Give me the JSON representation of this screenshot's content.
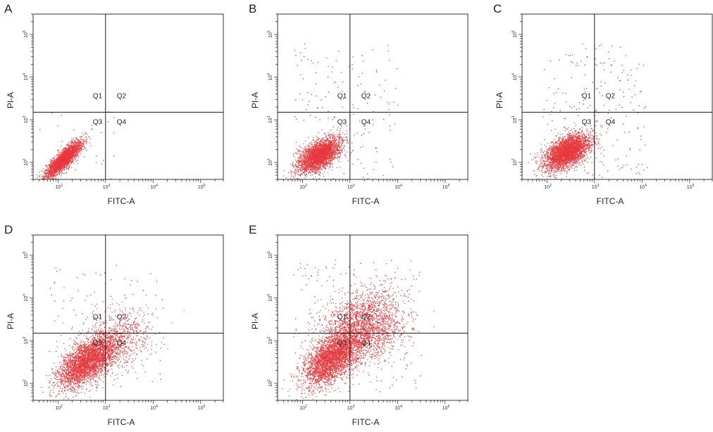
{
  "colors": {
    "points": "#e8383d",
    "axes": "#000000",
    "text": "#222222"
  },
  "chart_data": [
    {
      "type": "scatter",
      "panel_label": "A",
      "title": "",
      "xlabel": "FITC-A",
      "ylabel": "PI-A",
      "x_scale": "log",
      "y_scale": "log",
      "xlim": [
        30,
        300000
      ],
      "ylim": [
        40,
        300000
      ],
      "x_ticks": [
        {
          "base": "10",
          "exp": "2",
          "value": 100
        },
        {
          "base": "10",
          "exp": "3",
          "value": 1000
        },
        {
          "base": "10",
          "exp": "4",
          "value": 10000
        },
        {
          "base": "10",
          "exp": "5",
          "value": 100000
        }
      ],
      "y_ticks": [
        {
          "base": "10",
          "exp": "2",
          "value": 100
        },
        {
          "base": "10",
          "exp": "3",
          "value": 1000
        },
        {
          "base": "10",
          "exp": "4",
          "value": 10000
        },
        {
          "base": "10",
          "exp": "5",
          "value": 100000
        }
      ],
      "gates": {
        "x": 1000,
        "y": 1500
      },
      "quadrant_labels": [
        "Q1",
        "Q2",
        "Q3",
        "Q4"
      ],
      "populations": [
        {
          "n": 2600,
          "center": [
            130,
            120
          ],
          "spread": [
            0.19,
            0.21
          ],
          "correlation": 0.85
        }
      ],
      "sparse_events": {
        "n": 30,
        "x_range": [
          1.5,
          3.2
        ],
        "y_range": [
          1.4,
          3.2
        ]
      }
    },
    {
      "type": "scatter",
      "panel_label": "B",
      "title": "",
      "xlabel": "FITC-A",
      "ylabel": "PI-A",
      "x_scale": "log",
      "y_scale": "log",
      "xlim": [
        30,
        300000
      ],
      "ylim": [
        40,
        300000
      ],
      "x_ticks": [
        {
          "base": "10",
          "exp": "2",
          "value": 100
        },
        {
          "base": "10",
          "exp": "3",
          "value": 1000
        },
        {
          "base": "10",
          "exp": "4",
          "value": 10000
        },
        {
          "base": "10",
          "exp": "5",
          "value": 100000
        }
      ],
      "y_ticks": [
        {
          "base": "10",
          "exp": "2",
          "value": 100
        },
        {
          "base": "10",
          "exp": "3",
          "value": 1000
        },
        {
          "base": "10",
          "exp": "4",
          "value": 10000
        },
        {
          "base": "10",
          "exp": "5",
          "value": 100000
        }
      ],
      "gates": {
        "x": 1000,
        "y": 1500
      },
      "quadrant_labels": [
        "Q1",
        "Q2",
        "Q3",
        "Q4"
      ],
      "populations": [
        {
          "n": 3000,
          "center": [
            220,
            150
          ],
          "spread": [
            0.22,
            0.2
          ],
          "correlation": 0.55
        }
      ],
      "sparse_events": {
        "n": 160,
        "x_range": [
          1.8,
          4.0
        ],
        "y_range": [
          1.6,
          4.8
        ]
      }
    },
    {
      "type": "scatter",
      "panel_label": "C",
      "title": "",
      "xlabel": "FITC-A",
      "ylabel": "PI-A",
      "x_scale": "log",
      "y_scale": "log",
      "xlim": [
        30,
        300000
      ],
      "ylim": [
        40,
        300000
      ],
      "x_ticks": [
        {
          "base": "10",
          "exp": "2",
          "value": 100
        },
        {
          "base": "10",
          "exp": "3",
          "value": 1000
        },
        {
          "base": "10",
          "exp": "4",
          "value": 10000
        },
        {
          "base": "10",
          "exp": "5",
          "value": 100000
        }
      ],
      "y_ticks": [
        {
          "base": "10",
          "exp": "2",
          "value": 100
        },
        {
          "base": "10",
          "exp": "3",
          "value": 1000
        },
        {
          "base": "10",
          "exp": "4",
          "value": 10000
        },
        {
          "base": "10",
          "exp": "5",
          "value": 100000
        }
      ],
      "gates": {
        "x": 1000,
        "y": 1500
      },
      "quadrant_labels": [
        "Q1",
        "Q2",
        "Q3",
        "Q4"
      ],
      "populations": [
        {
          "n": 3300,
          "center": [
            260,
            180
          ],
          "spread": [
            0.24,
            0.21
          ],
          "correlation": 0.5
        }
      ],
      "sparse_events": {
        "n": 200,
        "x_range": [
          1.9,
          4.1
        ],
        "y_range": [
          1.6,
          4.8
        ]
      }
    },
    {
      "type": "scatter",
      "panel_label": "D",
      "title": "",
      "xlabel": "FITC-A",
      "ylabel": "PI-A",
      "x_scale": "log",
      "y_scale": "log",
      "xlim": [
        30,
        300000
      ],
      "ylim": [
        40,
        300000
      ],
      "x_ticks": [
        {
          "base": "10",
          "exp": "2",
          "value": 100
        },
        {
          "base": "10",
          "exp": "3",
          "value": 1000
        },
        {
          "base": "10",
          "exp": "4",
          "value": 10000
        },
        {
          "base": "10",
          "exp": "5",
          "value": 100000
        }
      ],
      "y_ticks": [
        {
          "base": "10",
          "exp": "2",
          "value": 100
        },
        {
          "base": "10",
          "exp": "3",
          "value": 1000
        },
        {
          "base": "10",
          "exp": "4",
          "value": 10000
        },
        {
          "base": "10",
          "exp": "5",
          "value": 100000
        }
      ],
      "gates": {
        "x": 1000,
        "y": 1500
      },
      "quadrant_labels": [
        "Q1",
        "Q2",
        "Q3",
        "Q4"
      ],
      "populations": [
        {
          "n": 3300,
          "center": [
            400,
            330
          ],
          "spread": [
            0.3,
            0.3
          ],
          "correlation": 0.6
        },
        {
          "n": 800,
          "center": [
            1600,
            1000
          ],
          "spread": [
            0.38,
            0.38
          ],
          "correlation": 0.3
        }
      ],
      "sparse_events": {
        "n": 120,
        "x_range": [
          1.8,
          4.3
        ],
        "y_range": [
          1.8,
          4.8
        ]
      }
    },
    {
      "type": "scatter",
      "panel_label": "E",
      "title": "",
      "xlabel": "FITC-A",
      "ylabel": "PI-A",
      "x_scale": "log",
      "y_scale": "log",
      "xlim": [
        30,
        300000
      ],
      "ylim": [
        40,
        300000
      ],
      "x_ticks": [
        {
          "base": "10",
          "exp": "2",
          "value": 100
        },
        {
          "base": "10",
          "exp": "3",
          "value": 1000
        },
        {
          "base": "10",
          "exp": "4",
          "value": 10000
        },
        {
          "base": "10",
          "exp": "5",
          "value": 100000
        }
      ],
      "y_ticks": [
        {
          "base": "10",
          "exp": "2",
          "value": 100
        },
        {
          "base": "10",
          "exp": "3",
          "value": 1000
        },
        {
          "base": "10",
          "exp": "4",
          "value": 10000
        },
        {
          "base": "10",
          "exp": "5",
          "value": 100000
        }
      ],
      "gates": {
        "x": 1000,
        "y": 1500
      },
      "quadrant_labels": [
        "Q1",
        "Q2",
        "Q3",
        "Q4"
      ],
      "populations": [
        {
          "n": 3200,
          "center": [
            420,
            400
          ],
          "spread": [
            0.3,
            0.32
          ],
          "correlation": 0.55
        },
        {
          "n": 2300,
          "center": [
            1900,
            2200
          ],
          "spread": [
            0.42,
            0.42
          ],
          "correlation": 0.25
        }
      ],
      "sparse_events": {
        "n": 220,
        "x_range": [
          1.8,
          4.5
        ],
        "y_range": [
          1.8,
          4.9
        ]
      }
    }
  ]
}
